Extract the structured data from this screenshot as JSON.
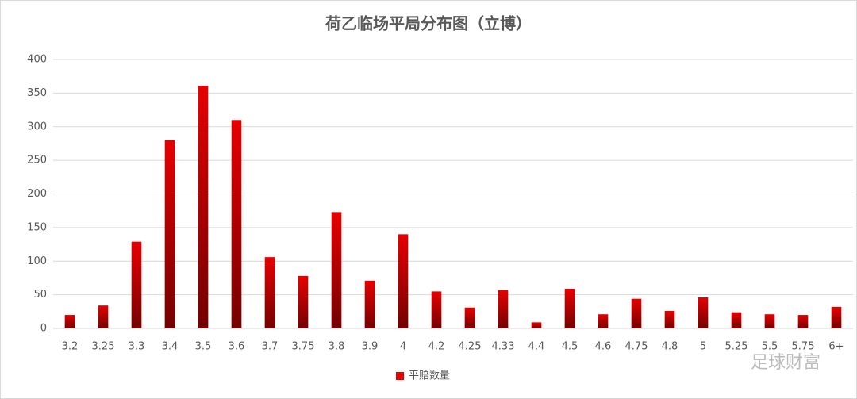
{
  "chart_data": {
    "type": "bar",
    "title": "荷乙临场平局分布图（立博）",
    "categories": [
      "3.2",
      "3.25",
      "3.3",
      "3.4",
      "3.5",
      "3.6",
      "3.7",
      "3.75",
      "3.8",
      "3.9",
      "4",
      "4.2",
      "4.25",
      "4.33",
      "4.4",
      "4.5",
      "4.6",
      "4.75",
      "4.8",
      "5",
      "5.25",
      "5.5",
      "5.75",
      "6+"
    ],
    "series": [
      {
        "name": "平赔数量",
        "color": "#e60000",
        "values": [
          20,
          34,
          129,
          280,
          361,
          310,
          106,
          78,
          173,
          71,
          140,
          55,
          31,
          57,
          9,
          59,
          21,
          44,
          26,
          46,
          24,
          21,
          20,
          32
        ]
      }
    ],
    "ylim": [
      0,
      400
    ],
    "yticks": [
      0,
      50,
      100,
      150,
      200,
      250,
      300,
      350,
      400
    ],
    "grid": true,
    "legend": "bottom",
    "watermark": "足球财富"
  }
}
